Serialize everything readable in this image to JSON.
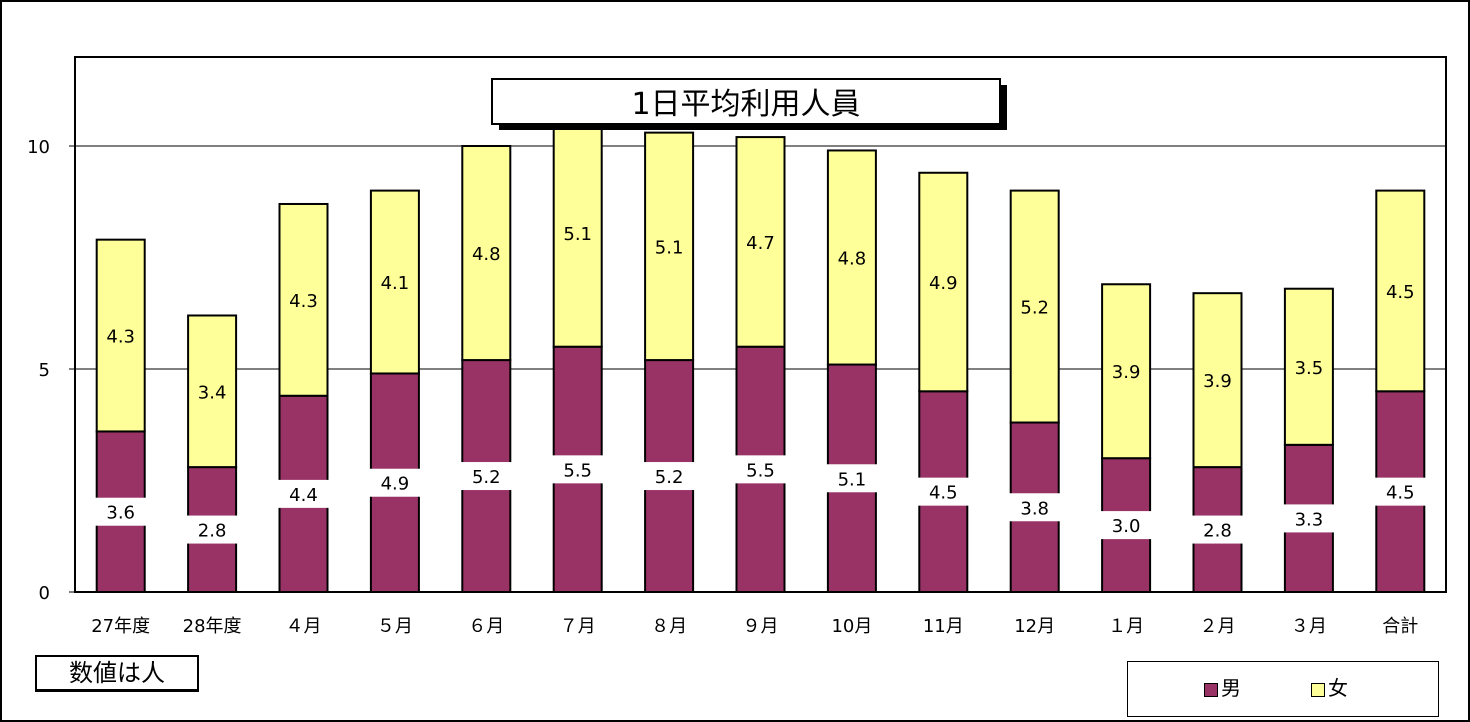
{
  "chart_data": {
    "type": "bar",
    "stacked": true,
    "title": "1日平均利用人員",
    "categories": [
      "27年度",
      "28年度",
      "４月",
      "５月",
      "６月",
      "７月",
      "８月",
      "９月",
      "10月",
      "11月",
      "12月",
      "１月",
      "２月",
      "３月",
      "合計"
    ],
    "series": [
      {
        "name": "男",
        "color": "#993366",
        "values": [
          3.6,
          2.8,
          4.4,
          4.9,
          5.2,
          5.5,
          5.2,
          5.5,
          5.1,
          4.5,
          3.8,
          3.0,
          2.8,
          3.3,
          4.5
        ],
        "labels": [
          "3.6",
          "2.8",
          "4.4",
          "4.9",
          "5.2",
          "5.5",
          "5.2",
          "5.5",
          "5.1",
          "4.5",
          "3.8",
          "3.0",
          "2.8",
          "3.3",
          "4.5"
        ]
      },
      {
        "name": "女",
        "color": "#ffff99",
        "values": [
          4.3,
          3.4,
          4.3,
          4.1,
          4.8,
          5.1,
          5.1,
          4.7,
          4.8,
          4.9,
          5.2,
          3.9,
          3.9,
          3.5,
          4.5
        ],
        "labels": [
          "4.3",
          "3.4",
          "4.3",
          "4.1",
          "4.8",
          "5.1",
          "5.1",
          "4.7",
          "4.8",
          "4.9",
          "5.2",
          "3.9",
          "3.9",
          "3.5",
          "4.5"
        ]
      }
    ],
    "ylim": [
      0,
      10.4
    ],
    "yticks": [
      "0",
      "5",
      "10"
    ],
    "grid": true,
    "legend_position": "bottom-right",
    "note": "数値は人"
  }
}
